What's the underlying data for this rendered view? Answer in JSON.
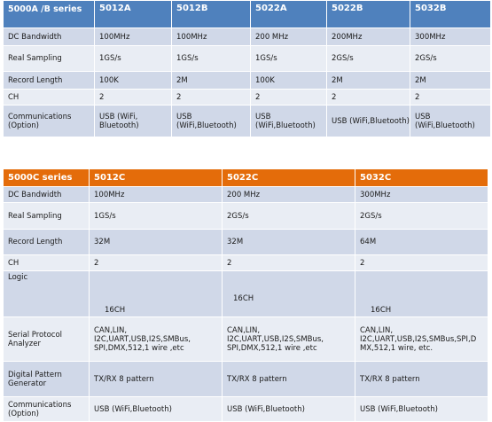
{
  "table1": {
    "header": [
      "5000A /B series",
      "5012A",
      "5012B",
      "5022A",
      "5022B",
      "5032B"
    ],
    "rows": [
      {
        "label": "DC Bandwidth",
        "cells": [
          "100MHz",
          "100MHz",
          "200 MHz",
          "200MHz",
          "300MHz"
        ]
      },
      {
        "label": "Real Sampling",
        "cells": [
          "1GS/s",
          "1GS/s",
          "1GS/s",
          "2GS/s",
          "2GS/s"
        ]
      },
      {
        "label": "Record Length",
        "cells": [
          "100K",
          "2M",
          "100K",
          "2M",
          "2M"
        ]
      },
      {
        "label": "CH",
        "cells": [
          "2",
          "2",
          "2",
          "2",
          "2"
        ]
      },
      {
        "label": "Communications (Option)",
        "cells": [
          "USB (WiFi, Bluetooth)",
          "USB (WiFi,Bluetooth)",
          "USB (WiFi,Bluetooth)",
          "USB (WiFi,Bluetooth)",
          "USB (WiFi,Bluetooth)"
        ]
      }
    ]
  },
  "table2": {
    "header": [
      "5000C series",
      "5012C",
      "5022C",
      "5032C"
    ],
    "rows": [
      {
        "label": "DC Bandwidth",
        "cells": [
          "100MHz",
          "200 MHz",
          "300MHz"
        ]
      },
      {
        "label": "Real Sampling",
        "cells": [
          "1GS/s",
          "2GS/s",
          "2GS/s"
        ]
      },
      {
        "label": "Record Length",
        "cells": [
          "32M",
          "32M",
          "64M"
        ]
      },
      {
        "label": "CH",
        "cells": [
          "2",
          "2",
          "2"
        ]
      },
      {
        "label": "Logic",
        "cells": [
          "16CH",
          "16CH",
          "16CH"
        ]
      },
      {
        "label": "Serial Protocol Analyzer",
        "cells": [
          "CAN,LIN, I2C,UART,USB,I2S,SMBus, SPI,DMX,512,1 wire ,etc",
          "CAN,LIN, I2C,UART,USB,I2S,SMBus, SPI,DMX,512,1 wire ,etc",
          "CAN,LIN, I2C,UART,USB,I2S,SMBus,SPI,D MX,512,1 wire, etc."
        ]
      },
      {
        "label": "Digital Pattern Generator",
        "cells": [
          "TX/RX 8 pattern",
          "TX/RX 8 pattern",
          "TX/RX 8 pattern"
        ]
      },
      {
        "label": "Communications (Option)",
        "cells": [
          "USB (WiFi,Bluetooth)",
          "USB (WiFi,Bluetooth)",
          "USB (WiFi,Bluetooth)"
        ]
      }
    ]
  },
  "colors": {
    "table1_header": "#4f81bd",
    "table2_header": "#e46c0a",
    "row_dark": "#d0d8e8",
    "row_light": "#e9edf4"
  }
}
